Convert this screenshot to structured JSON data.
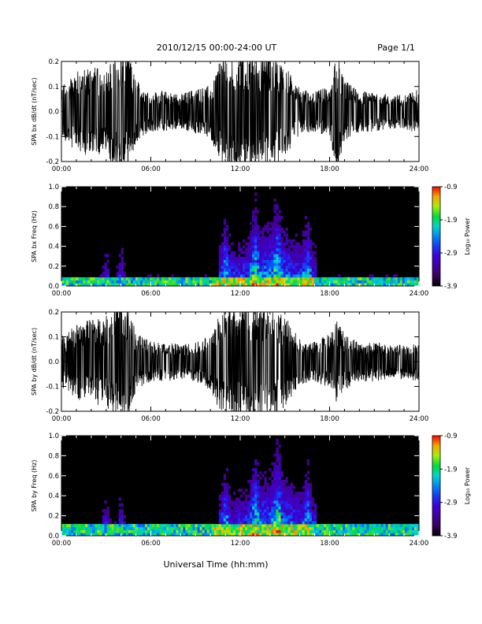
{
  "header": {
    "title": "2010/12/15  00:00-24:00 UT",
    "page": "Page 1/1"
  },
  "xaxis_label": "Universal Time (hh:mm)",
  "chart_data": [
    {
      "type": "line",
      "ylabel": "SPA bx dB/dt (nT/sec)",
      "xlim": [
        0,
        24
      ],
      "ylim": [
        -0.2,
        0.2
      ],
      "x_ticks": [
        "00:00",
        "06:00",
        "12:00",
        "18:00",
        "24:00"
      ],
      "y_ticks": [
        "-0.2",
        "-0.1",
        "0.0",
        "0.1",
        "0.2"
      ],
      "x_hours": [
        0,
        1,
        2,
        3,
        3.5,
        4,
        4.5,
        5,
        6,
        7,
        8,
        9,
        10,
        10.5,
        11,
        12,
        13,
        14,
        15,
        16,
        17,
        18,
        18.5,
        19,
        20,
        21,
        22,
        23,
        24
      ],
      "envelope": [
        0.09,
        0.14,
        0.16,
        0.14,
        0.2,
        0.2,
        0.2,
        0.11,
        0.07,
        0.07,
        0.06,
        0.08,
        0.09,
        0.16,
        0.2,
        0.2,
        0.2,
        0.2,
        0.16,
        0.08,
        0.07,
        0.09,
        0.2,
        0.11,
        0.07,
        0.07,
        0.06,
        0.06,
        0.08
      ],
      "grid": false
    },
    {
      "type": "heatmap",
      "ylabel": "SPA bx Freq (Hz)",
      "xlim": [
        0,
        24
      ],
      "ylim": [
        0.0,
        1.0
      ],
      "x_ticks": [
        "00:00",
        "06:00",
        "12:00",
        "18:00",
        "24:00"
      ],
      "y_ticks": [
        "0.0",
        "0.2",
        "0.4",
        "0.6",
        "0.8",
        "1.0"
      ],
      "colorbar": {
        "label": "Log₁₀ Power",
        "range": [
          -3.9,
          -0.9
        ],
        "ticks": [
          "-0.9",
          "-1.9",
          "-2.9",
          "-3.9"
        ]
      },
      "activity_peak_hours": [
        3.0,
        4.0,
        11.0,
        13.0,
        14.5,
        16.5
      ],
      "high_power_band_hz": [
        0.0,
        0.1
      ]
    },
    {
      "type": "line",
      "ylabel": "SPA by dB/dt (nT/sec)",
      "xlim": [
        0,
        24
      ],
      "ylim": [
        -0.2,
        0.2
      ],
      "x_ticks": [
        "00:00",
        "06:00",
        "12:00",
        "18:00",
        "24:00"
      ],
      "y_ticks": [
        "-0.2",
        "-0.1",
        "0.0",
        "0.1",
        "0.2"
      ],
      "x_hours": [
        0,
        1,
        2,
        3,
        3.5,
        4,
        4.5,
        5,
        6,
        7,
        8,
        9,
        10,
        10.5,
        11,
        12,
        13,
        14,
        15,
        16,
        17,
        18,
        18.5,
        19,
        20,
        21,
        22,
        23,
        24
      ],
      "envelope": [
        0.09,
        0.13,
        0.15,
        0.16,
        0.2,
        0.2,
        0.2,
        0.1,
        0.07,
        0.07,
        0.06,
        0.07,
        0.1,
        0.16,
        0.2,
        0.2,
        0.2,
        0.2,
        0.16,
        0.08,
        0.07,
        0.1,
        0.15,
        0.1,
        0.07,
        0.07,
        0.06,
        0.06,
        0.07
      ],
      "grid": false
    },
    {
      "type": "heatmap",
      "ylabel": "SPA by Freq (Hz)",
      "xlim": [
        0,
        24
      ],
      "ylim": [
        0.0,
        1.0
      ],
      "x_ticks": [
        "00:00",
        "06:00",
        "12:00",
        "18:00",
        "24:00"
      ],
      "y_ticks": [
        "0.0",
        "0.2",
        "0.4",
        "0.6",
        "0.8",
        "1.0"
      ],
      "colorbar": {
        "label": "Log₁₀ Power",
        "range": [
          -3.9,
          -0.9
        ],
        "ticks": [
          "-0.9",
          "-1.9",
          "-2.9",
          "-3.9"
        ]
      },
      "activity_peak_hours": [
        3.0,
        4.0,
        11.0,
        13.0,
        14.5,
        16.5
      ],
      "high_power_band_hz": [
        0.0,
        0.12
      ]
    }
  ]
}
